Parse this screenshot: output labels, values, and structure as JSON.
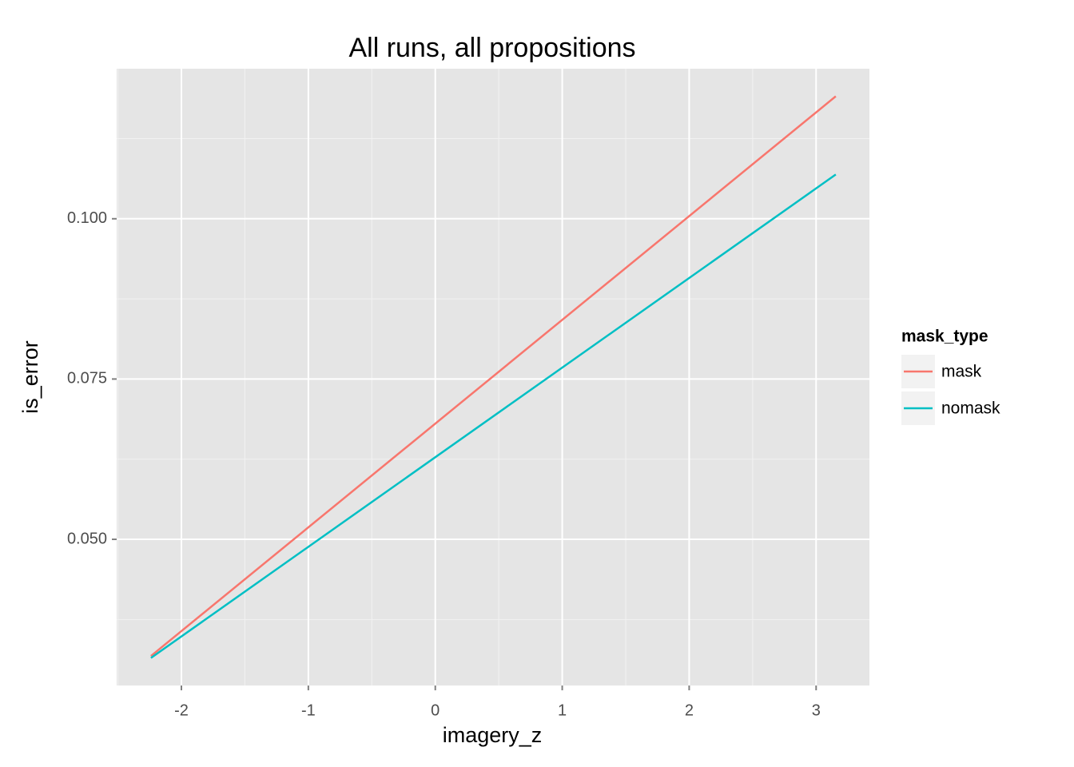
{
  "chart_data": {
    "type": "line",
    "title": "All runs, all propositions",
    "x_label": "imagery_z",
    "y_label": "is_error",
    "series": [
      {
        "name": "mask",
        "color": "#f8766d",
        "x": [
          -2.24,
          3.155
        ],
        "values": [
          0.0318,
          0.1191
        ]
      },
      {
        "name": "nomask",
        "color": "#00bfc4",
        "x": [
          -2.24,
          3.155
        ],
        "values": [
          0.0315,
          0.1069
        ]
      }
    ],
    "xlim": [
      -2.51,
      3.42
    ],
    "xticks": [
      -2,
      -1,
      0,
      1,
      2,
      3
    ],
    "ylim": [
      0.0272,
      0.1234
    ],
    "yticks": [
      {
        "value": 0.05,
        "label": "0.050"
      },
      {
        "value": 0.075,
        "label": "0.075"
      },
      {
        "value": 0.1,
        "label": "0.100"
      }
    ],
    "grid": true,
    "legend_title": "mask_type",
    "legend_position": "right"
  }
}
